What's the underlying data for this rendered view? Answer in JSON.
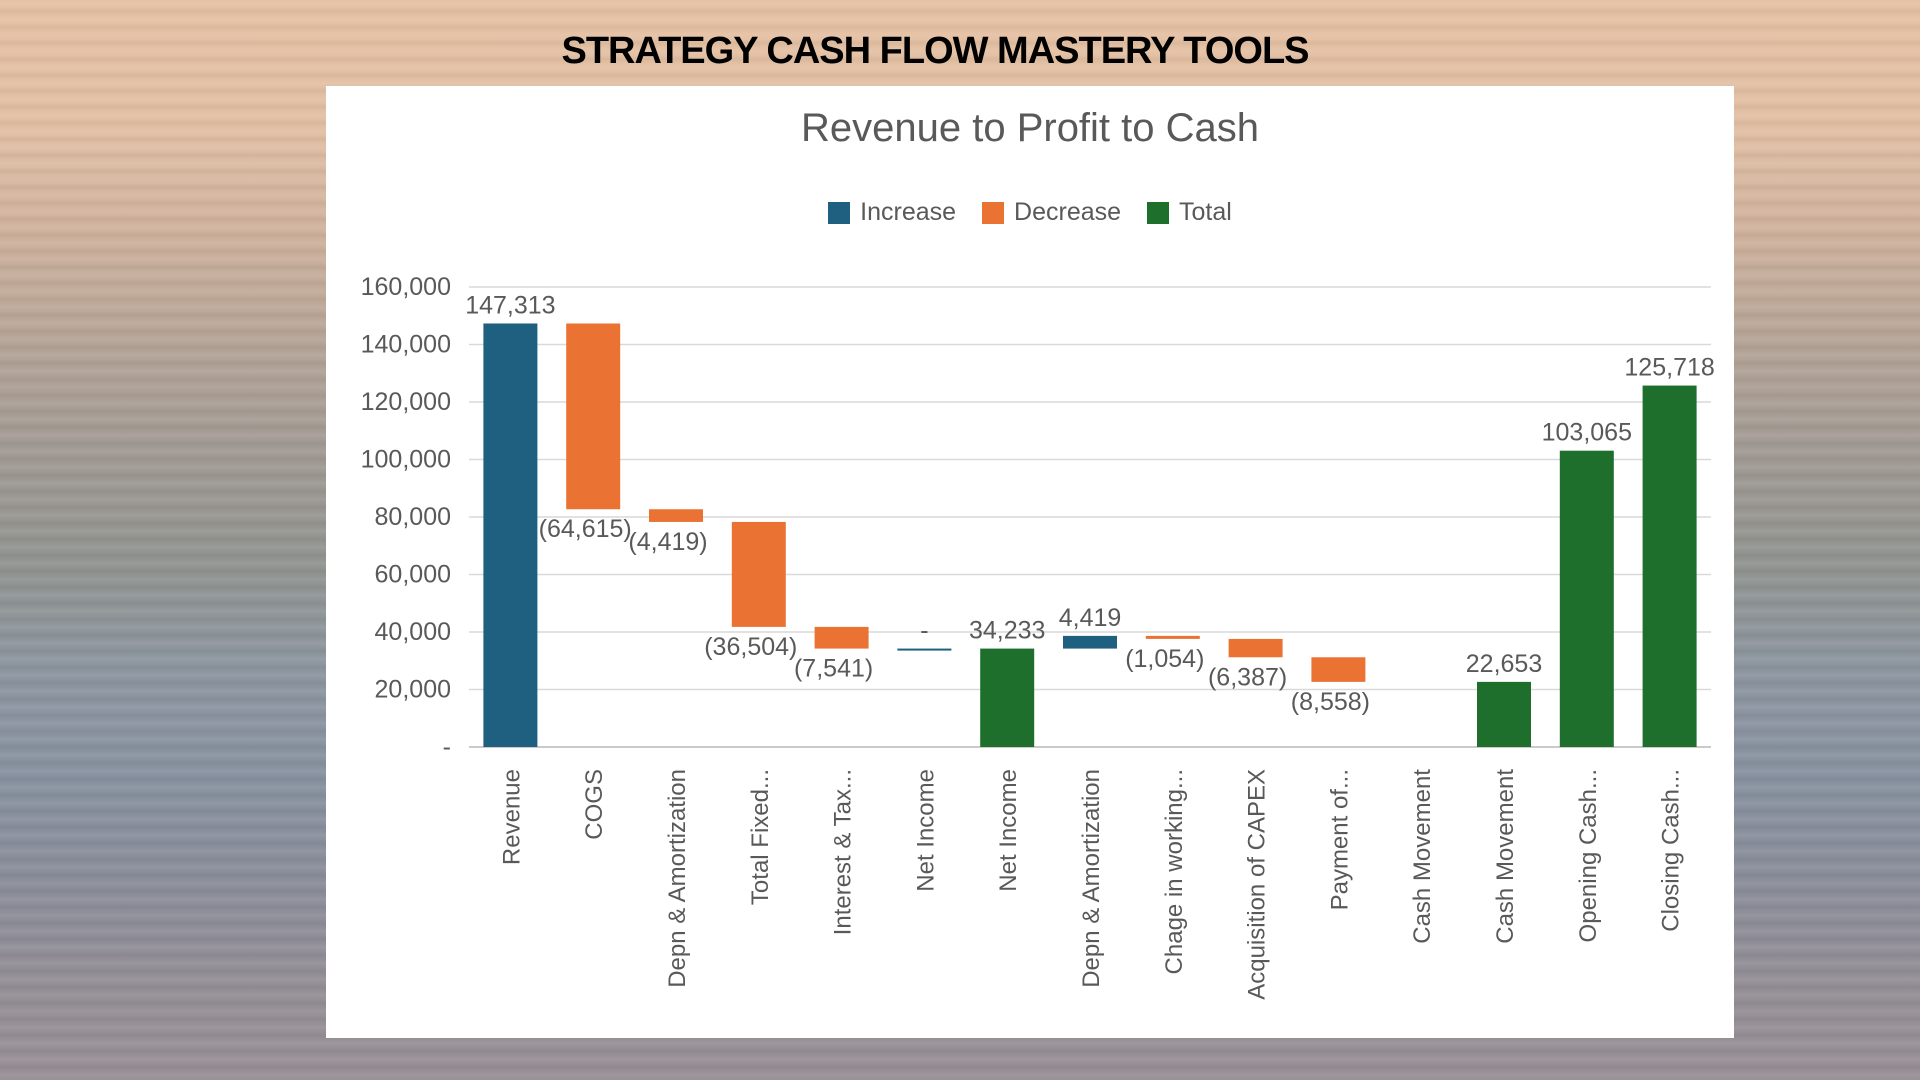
{
  "header": {
    "title": "STRATEGY CASH FLOW MASTERY TOOLS"
  },
  "chart_data": {
    "type": "bar",
    "subtype": "waterfall",
    "title": "Revenue to Profit to Cash",
    "legend": {
      "position": "top",
      "entries": [
        {
          "name": "Increase",
          "color": "#1f5f7f"
        },
        {
          "name": "Decrease",
          "color": "#ea7333"
        },
        {
          "name": "Total",
          "color": "#1e6f2b"
        }
      ]
    },
    "grid": true,
    "ylim": [
      0,
      160000
    ],
    "y_ticks": [
      {
        "value": 0,
        "label": "-"
      },
      {
        "value": 20000,
        "label": "20,000"
      },
      {
        "value": 40000,
        "label": "40,000"
      },
      {
        "value": 60000,
        "label": "60,000"
      },
      {
        "value": 80000,
        "label": "80,000"
      },
      {
        "value": 100000,
        "label": "100,000"
      },
      {
        "value": 120000,
        "label": "120,000"
      },
      {
        "value": 140000,
        "label": "140,000"
      },
      {
        "value": 160000,
        "label": "160,000"
      }
    ],
    "bars": [
      {
        "category": "Revenue",
        "kind": "increase",
        "from": 0,
        "to": 147313,
        "label": "147,313"
      },
      {
        "category": "COGS",
        "kind": "decrease",
        "from": 147313,
        "to": 82698,
        "label": "(64,615)"
      },
      {
        "category": "Depn & Amortization",
        "kind": "decrease",
        "from": 82698,
        "to": 78279,
        "label": "(4,419)"
      },
      {
        "category": "Total Fixed...",
        "kind": "decrease",
        "from": 78279,
        "to": 41775,
        "label": "(36,504)"
      },
      {
        "category": "Interest & Tax...",
        "kind": "decrease",
        "from": 41775,
        "to": 34233,
        "label": "(7,541)"
      },
      {
        "category": "Net Income",
        "kind": "increase",
        "from": 34233,
        "to": 34233,
        "label": "-"
      },
      {
        "category": "Net Income",
        "kind": "total",
        "from": 0,
        "to": 34233,
        "label": "34,233"
      },
      {
        "category": "Depn & Amortization",
        "kind": "increase",
        "from": 34233,
        "to": 38652,
        "label": "4,419"
      },
      {
        "category": "Chage in working...",
        "kind": "decrease",
        "from": 38652,
        "to": 37598,
        "label": "(1,054)"
      },
      {
        "category": "Acquisition of CAPEX",
        "kind": "decrease",
        "from": 37598,
        "to": 31211,
        "label": "(6,387)"
      },
      {
        "category": "Payment of...",
        "kind": "decrease",
        "from": 31211,
        "to": 22653,
        "label": "(8,558)"
      },
      {
        "category": "Cash Movement",
        "kind": "none",
        "from": 22653,
        "to": 22653,
        "label": ""
      },
      {
        "category": "Cash Movement",
        "kind": "total",
        "from": 0,
        "to": 22653,
        "label": "22,653"
      },
      {
        "category": "Opening Cash...",
        "kind": "total",
        "from": 0,
        "to": 103065,
        "label": "103,065"
      },
      {
        "category": "Closing Cash...",
        "kind": "total",
        "from": 0,
        "to": 125718,
        "label": "125,718"
      }
    ]
  }
}
